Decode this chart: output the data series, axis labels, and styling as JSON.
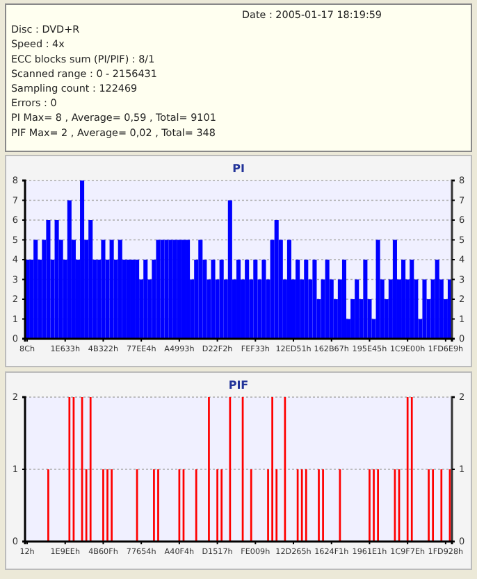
{
  "chart_data": [
    {
      "type": "other",
      "annotations": [
        "Date : 2005-01-17 18:19:59",
        "Disc : DVD+R",
        "Speed : 4x",
        "ECC blocks sum (PI/PIF) : 8/1",
        "Scanned range : 0 - 2156431",
        "Sampling count : 122469",
        "Errors : 0",
        "PI Max= 8 , Average= 0,59 , Total= 9101",
        "PIF Max= 2 , Average= 0,02 , Total= 348"
      ]
    },
    {
      "type": "bar",
      "title": "PI",
      "categories": [
        "8Ch",
        null,
        null,
        null,
        null,
        null,
        null,
        null,
        null,
        "1E633h",
        null,
        null,
        null,
        null,
        null,
        null,
        null,
        null,
        "4B322h",
        null,
        null,
        null,
        null,
        null,
        null,
        null,
        null,
        "77EE4h",
        null,
        null,
        null,
        null,
        null,
        null,
        null,
        null,
        "A4993h",
        null,
        null,
        null,
        null,
        null,
        null,
        null,
        null,
        "D22F2h",
        null,
        null,
        null,
        null,
        null,
        null,
        null,
        null,
        "FEF33h",
        null,
        null,
        null,
        null,
        null,
        null,
        null,
        null,
        "12ED51h",
        null,
        null,
        null,
        null,
        null,
        null,
        null,
        null,
        "162B67h",
        null,
        null,
        null,
        null,
        null,
        null,
        null,
        null,
        "195E45h",
        null,
        null,
        null,
        null,
        null,
        null,
        null,
        null,
        "1C9E00h",
        null,
        null,
        null,
        null,
        null,
        null,
        null,
        null,
        "1FD6E9h",
        null
      ],
      "series": [
        {
          "color": "#0000ff",
          "values": [
            4,
            4,
            5,
            4,
            5,
            6,
            4,
            6,
            5,
            4,
            7,
            5,
            4,
            8,
            5,
            6,
            4,
            4,
            5,
            4,
            5,
            4,
            5,
            4,
            4,
            4,
            4,
            3,
            4,
            3,
            4,
            5,
            5,
            5,
            5,
            5,
            5,
            5,
            5,
            3,
            4,
            5,
            4,
            3,
            4,
            3,
            4,
            3,
            7,
            3,
            4,
            3,
            4,
            3,
            4,
            3,
            4,
            3,
            5,
            6,
            5,
            3,
            5,
            3,
            4,
            3,
            4,
            3,
            4,
            2,
            3,
            4,
            3,
            2,
            3,
            4,
            1,
            2,
            3,
            2,
            4,
            2,
            1,
            5,
            3,
            2,
            3,
            5,
            3,
            4,
            3,
            4,
            3,
            1,
            3,
            2,
            3,
            4,
            3,
            2,
            3
          ]
        }
      ],
      "ylim": [
        0,
        8
      ],
      "yticks": [
        0,
        1,
        2,
        3,
        4,
        5,
        6,
        7,
        8
      ],
      "y2lim": [
        0,
        8
      ],
      "y2ticks": [
        0,
        1,
        2,
        3,
        4,
        5,
        6,
        7,
        8
      ],
      "grid": "y"
    },
    {
      "type": "bar",
      "title": "PIF",
      "categories": [
        "12h",
        null,
        null,
        null,
        null,
        null,
        null,
        null,
        null,
        "1E9EEh",
        null,
        null,
        null,
        null,
        null,
        null,
        null,
        null,
        "4B60Fh",
        null,
        null,
        null,
        null,
        null,
        null,
        null,
        null,
        "77654h",
        null,
        null,
        null,
        null,
        null,
        null,
        null,
        null,
        "A40F4h",
        null,
        null,
        null,
        null,
        null,
        null,
        null,
        null,
        "D1517h",
        null,
        null,
        null,
        null,
        null,
        null,
        null,
        null,
        "FE009h",
        null,
        null,
        null,
        null,
        null,
        null,
        null,
        null,
        "12D265h",
        null,
        null,
        null,
        null,
        null,
        null,
        null,
        null,
        "1624F1h",
        null,
        null,
        null,
        null,
        null,
        null,
        null,
        null,
        "1961E1h",
        null,
        null,
        null,
        null,
        null,
        null,
        null,
        null,
        "1C9F7Eh",
        null,
        null,
        null,
        null,
        null,
        null,
        null,
        null,
        "1FD928h",
        null
      ],
      "series": [
        {
          "color": "#ff0000",
          "values": [
            0,
            0,
            0,
            0,
            0,
            1,
            0,
            0,
            0,
            0,
            2,
            2,
            0,
            2,
            1,
            2,
            0,
            0,
            1,
            1,
            1,
            0,
            0,
            0,
            0,
            0,
            1,
            0,
            0,
            0,
            1,
            1,
            0,
            0,
            0,
            0,
            1,
            1,
            0,
            0,
            1,
            0,
            0,
            2,
            0,
            1,
            1,
            0,
            2,
            0,
            0,
            2,
            0,
            1,
            0,
            0,
            0,
            1,
            2,
            1,
            0,
            2,
            0,
            0,
            1,
            1,
            1,
            0,
            0,
            1,
            1,
            0,
            0,
            0,
            1,
            0,
            0,
            0,
            0,
            0,
            0,
            1,
            1,
            1,
            0,
            0,
            0,
            1,
            1,
            0,
            2,
            2,
            0,
            0,
            0,
            1,
            1,
            0,
            1,
            0,
            1
          ]
        }
      ],
      "ylim": [
        0,
        2
      ],
      "yticks": [
        0,
        1,
        2
      ],
      "y2lim": [
        0,
        2
      ],
      "y2ticks": [
        0,
        1,
        2
      ],
      "grid": "y"
    }
  ]
}
